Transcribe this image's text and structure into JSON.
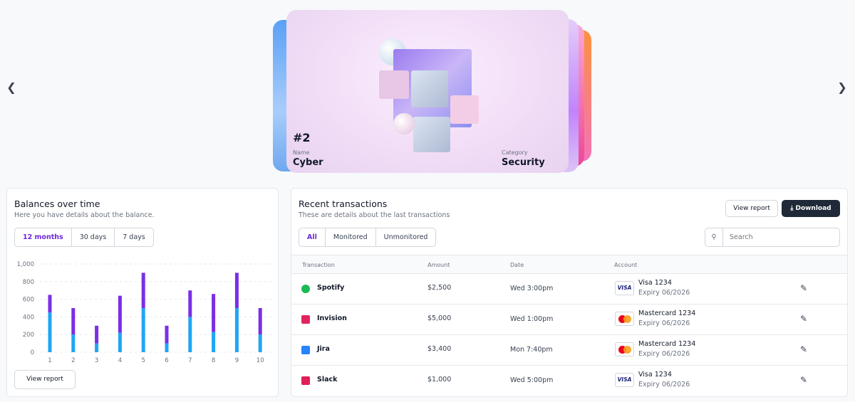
{
  "carousel": {
    "prev_icon": "chevron-left-icon",
    "next_icon": "chevron-right-icon",
    "active": {
      "number": "#2",
      "name_label": "Name",
      "name": "Cyber",
      "category_label": "Category",
      "category": "Security"
    }
  },
  "balances": {
    "title": "Balances over time",
    "subtitle": "Here you have details about the balance.",
    "ranges": [
      "12 months",
      "30 days",
      "7 days"
    ],
    "active_range": "12 months",
    "view_report": "View report"
  },
  "chart_data": {
    "type": "bar",
    "stacked": true,
    "categories": [
      "1",
      "2",
      "3",
      "4",
      "5",
      "6",
      "7",
      "8",
      "9",
      "10"
    ],
    "series": [
      {
        "values": [
          450,
          200,
          100,
          220,
          500,
          100,
          400,
          230,
          500,
          200
        ],
        "color": "#1fa6f2"
      },
      {
        "values": [
          200,
          300,
          200,
          420,
          400,
          200,
          300,
          430,
          400,
          300
        ],
        "color": "#7b2ee6"
      }
    ],
    "yticks": [
      "0",
      "200",
      "400",
      "600",
      "800",
      "1,000"
    ],
    "ylim": [
      0,
      1000
    ],
    "grid": true
  },
  "transactions": {
    "title": "Recent transactions",
    "subtitle": "These are details about the last transactions",
    "view_report": "View report",
    "download": "Download",
    "filters": [
      "All",
      "Monitored",
      "Unmonitored"
    ],
    "active_filter": "All",
    "search_placeholder": "Search",
    "columns": [
      "Transaction",
      "Amount",
      "Date",
      "Account"
    ],
    "rows": [
      {
        "name": "Spotify",
        "icon": "spotify-icon",
        "color": "#1db954",
        "amount": "$2,500",
        "date": "Wed 3:00pm",
        "card": "Visa 1234",
        "brand": "VISA",
        "expiry": "Expiry 06/2026"
      },
      {
        "name": "Invision",
        "icon": "invision-icon",
        "color": "#e0245e",
        "amount": "$5,000",
        "date": "Wed 1:00pm",
        "card": "Mastercard 1234",
        "brand": "mastercard",
        "expiry": "Expiry 06/2026"
      },
      {
        "name": "Jira",
        "icon": "jira-icon",
        "color": "#2684ff",
        "amount": "$3,400",
        "date": "Mon 7:40pm",
        "card": "Mastercard 1234",
        "brand": "mastercard",
        "expiry": "Expiry 06/2026"
      },
      {
        "name": "Slack",
        "icon": "slack-icon",
        "color": "#e01e5a",
        "amount": "$1,000",
        "date": "Wed 5:00pm",
        "card": "Visa 1234",
        "brand": "VISA",
        "expiry": "Expiry 06/2026"
      }
    ]
  }
}
